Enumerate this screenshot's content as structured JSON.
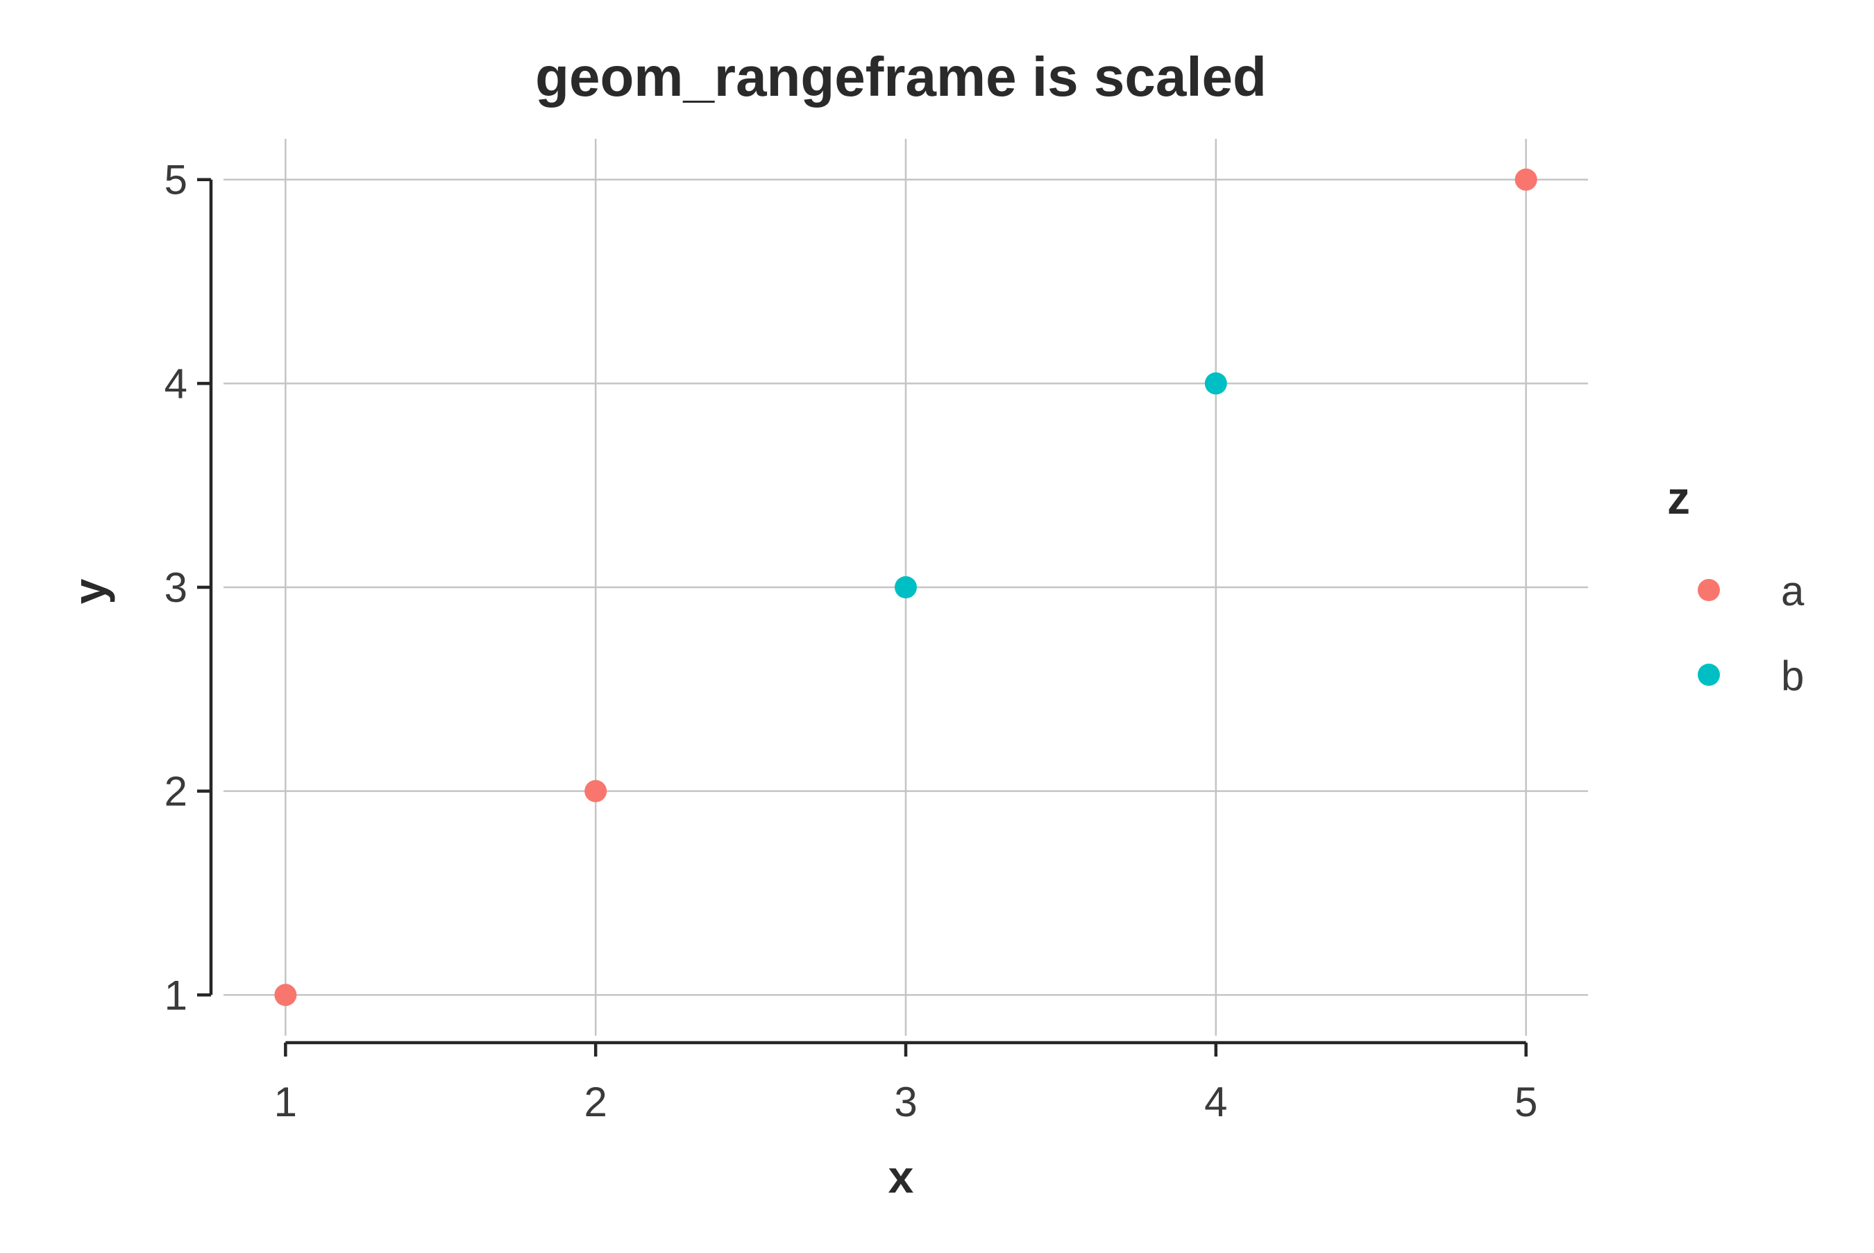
{
  "chart_data": {
    "type": "scatter",
    "title": "geom_rangeframe is scaled",
    "xlabel": "x",
    "ylabel": "y",
    "x_ticks": [
      1,
      2,
      3,
      4,
      5
    ],
    "y_ticks": [
      1,
      2,
      3,
      4,
      5
    ],
    "xlim": [
      0.8,
      5.2
    ],
    "ylim": [
      0.8,
      5.2
    ],
    "grid": true,
    "legend": {
      "title": "z",
      "position": "right",
      "entries": [
        {
          "label": "a",
          "color": "#F8766D"
        },
        {
          "label": "b",
          "color": "#00BFC4"
        }
      ]
    },
    "series": [
      {
        "name": "a",
        "color": "#F8766D",
        "points": [
          {
            "x": 1,
            "y": 1
          },
          {
            "x": 2,
            "y": 2
          },
          {
            "x": 5,
            "y": 5
          }
        ]
      },
      {
        "name": "b",
        "color": "#00BFC4",
        "points": [
          {
            "x": 3,
            "y": 3
          },
          {
            "x": 4,
            "y": 4
          }
        ]
      }
    ]
  }
}
